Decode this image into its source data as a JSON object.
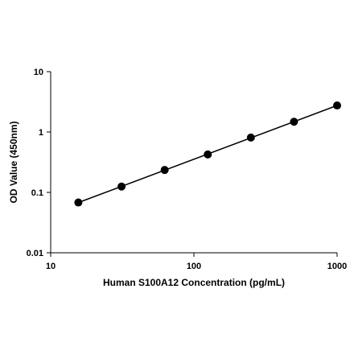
{
  "chart_data": {
    "type": "scatter",
    "title": "",
    "xlabel": "Human S100A12  Concentration (pg/mL)",
    "ylabel": "OD Value (450nm)",
    "x_scale": "log",
    "y_scale": "log",
    "xlim": [
      10,
      1000
    ],
    "ylim": [
      0.01,
      10
    ],
    "x_ticks": [
      "10",
      "100",
      "1000"
    ],
    "y_ticks": [
      "0.01",
      "0.1",
      "1",
      "10"
    ],
    "grid": false,
    "legend": "none",
    "series": [
      {
        "marker_color": "#000000",
        "line": "fit",
        "x": [
          15.6,
          31.25,
          62.5,
          125,
          250,
          500,
          1000
        ],
        "y": [
          0.068,
          0.125,
          0.235,
          0.425,
          0.81,
          1.48,
          2.75
        ]
      }
    ]
  }
}
